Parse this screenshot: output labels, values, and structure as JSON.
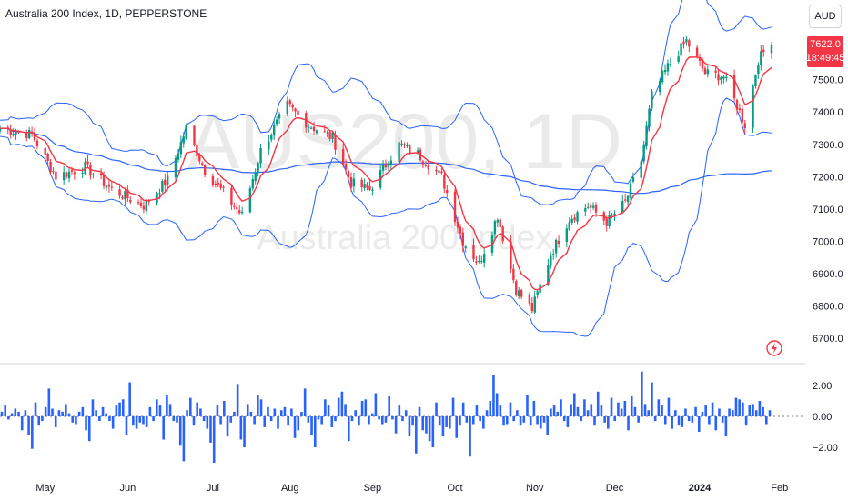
{
  "header": {
    "symbol_title": "Australia 200 Index, 1D, PEPPERSTONE",
    "currency": "AUD",
    "last_price": "7622.0",
    "countdown": "18:49:45"
  },
  "watermark": {
    "ticker": "AUS200, 1D",
    "name": "Australia 200 Index"
  },
  "colors": {
    "up": "#089981",
    "down": "#f23645",
    "band": "#2962ff",
    "ema": "#f23645",
    "histogram": "#2962ff"
  },
  "chart_data": [
    {
      "type": "candlestick",
      "price_axis": {
        "ylim": [
          6650,
          7690
        ],
        "ticks": [
          "7500.0",
          "7400.0",
          "7300.0",
          "7200.0",
          "7100.0",
          "7000.0",
          "6900.0",
          "6800.0",
          "6700.0"
        ]
      },
      "time_axis": {
        "labels": [
          "May",
          "Jun",
          "Jul",
          "Aug",
          "Sep",
          "Oct",
          "Nov",
          "Dec",
          "2024",
          "Feb"
        ]
      },
      "close_series": [
        {
          "date": "2023-04-14",
          "close": 7350
        },
        {
          "date": "2023-04-26",
          "close": 7330
        },
        {
          "date": "2023-05-05",
          "close": 7200
        },
        {
          "date": "2023-05-16",
          "close": 7230
        },
        {
          "date": "2023-05-26",
          "close": 7160
        },
        {
          "date": "2023-06-07",
          "close": 7110
        },
        {
          "date": "2023-06-16",
          "close": 7190
        },
        {
          "date": "2023-06-23",
          "close": 7350
        },
        {
          "date": "2023-06-30",
          "close": 7220
        },
        {
          "date": "2023-07-07",
          "close": 7150
        },
        {
          "date": "2023-07-14",
          "close": 7080
        },
        {
          "date": "2023-07-21",
          "close": 7280
        },
        {
          "date": "2023-07-31",
          "close": 7420
        },
        {
          "date": "2023-08-08",
          "close": 7360
        },
        {
          "date": "2023-08-17",
          "close": 7320
        },
        {
          "date": "2023-08-24",
          "close": 7180
        },
        {
          "date": "2023-08-31",
          "close": 7160
        },
        {
          "date": "2023-09-11",
          "close": 7300
        },
        {
          "date": "2023-09-18",
          "close": 7270
        },
        {
          "date": "2023-09-27",
          "close": 7200
        },
        {
          "date": "2023-10-05",
          "close": 7000
        },
        {
          "date": "2023-10-11",
          "close": 6930
        },
        {
          "date": "2023-10-18",
          "close": 7080
        },
        {
          "date": "2023-10-25",
          "close": 6850
        },
        {
          "date": "2023-10-31",
          "close": 6790
        },
        {
          "date": "2023-11-07",
          "close": 6960
        },
        {
          "date": "2023-11-14",
          "close": 7070
        },
        {
          "date": "2023-11-21",
          "close": 7110
        },
        {
          "date": "2023-11-28",
          "close": 7060
        },
        {
          "date": "2023-12-05",
          "close": 7120
        },
        {
          "date": "2023-12-11",
          "close": 7250
        },
        {
          "date": "2023-12-15",
          "close": 7450
        },
        {
          "date": "2023-12-21",
          "close": 7540
        },
        {
          "date": "2023-12-28",
          "close": 7620
        },
        {
          "date": "2024-01-04",
          "close": 7520
        },
        {
          "date": "2024-01-11",
          "close": 7510
        },
        {
          "date": "2024-01-17",
          "close": 7400
        },
        {
          "date": "2024-01-19",
          "close": 7360
        },
        {
          "date": "2024-01-24",
          "close": 7560
        },
        {
          "date": "2024-01-29",
          "close": 7622
        }
      ],
      "indicators": [
        "Bollinger Bands",
        "EMA",
        "Moving Average"
      ]
    },
    {
      "type": "bar",
      "name": "oscillator",
      "ylim": [
        -3,
        3
      ],
      "ticks": [
        "2.00",
        "0.00",
        "−2.00"
      ],
      "values": [
        0.3,
        0.7,
        -0.2,
        0.2,
        0.5,
        0.3,
        -0.9,
        0.4,
        -1.2,
        -2.1,
        0.9,
        -0.6,
        -0.3,
        0.6,
        1.8,
        0.5,
        -0.7,
        0.4,
        0.3,
        0.8,
        0.2,
        -0.4,
        -0.5,
        0.3,
        0.6,
        -0.9,
        -1.6,
        1.1,
        0.4,
        -0.3,
        0.6,
        0.2,
        -0.3,
        -0.8,
        0.7,
        0.9,
        1.1,
        -1.2,
        2.2,
        -0.6,
        -0.8,
        -0.4,
        -0.5,
        -0.7,
        0.6,
        -0.3,
        1.1,
        0.7,
        -1.5,
        1.4,
        0.8,
        -0.3,
        -0.4,
        -1.9,
        -2.9,
        0.4,
        1.2,
        -0.6,
        0.9,
        0.5,
        -0.3,
        -0.8,
        -1.7,
        -3.0,
        0.7,
        -0.5,
        1.0,
        -1.3,
        -0.4,
        0.3,
        2.1,
        -1.5,
        -2.0,
        0.8,
        0.3,
        -0.5,
        1.4,
        1.1,
        -0.7,
        0.6,
        -0.3,
        0.5,
        -0.8,
        0.4,
        0.6,
        -0.6,
        0.5,
        -1.4,
        -0.9,
        0.3,
        1.8,
        -0.4,
        -1.2,
        -2.0,
        -0.2,
        -0.5,
        1.1,
        0.7,
        -0.7,
        -0.3,
        1.2,
        1.6,
        0.8,
        -1.6,
        -0.3,
        0.4,
        -0.6,
        1.0,
        1.1,
        -0.5,
        0.2,
        1.5,
        -0.2,
        -0.5,
        -0.4,
        1.3,
        -0.2,
        -1.1,
        0.7,
        -0.3,
        0.4,
        -1.3,
        -0.6,
        -2.4,
        0.6,
        -0.9,
        -1.1,
        -1.6,
        -2.0,
        0.9,
        -0.6,
        -1.3,
        -0.7,
        -0.8,
        1.2,
        -1.4,
        -0.6,
        0.9,
        -0.4,
        -2.6,
        -0.5,
        0.7,
        -0.3,
        -0.8,
        0.4,
        1.0,
        2.7,
        1.5,
        0.7,
        -0.6,
        -0.5,
        0.9,
        -0.3,
        0.4,
        -0.6,
        -0.4,
        1.4,
        -0.6,
        1.0,
        -0.5,
        -0.8,
        -0.4,
        -1.2,
        0.5,
        0.7,
        0.3,
        1.1,
        -0.3,
        -0.7,
        0.8,
        1.5,
        0.6,
        -0.3,
        1.1,
        0.4,
        0.8,
        -0.6,
        1.6,
        0.7,
        -0.4,
        -0.8,
        1.2,
        -0.3,
        0.9,
        0.5,
        1.0,
        -0.9,
        1.3,
        0.6,
        -0.4,
        2.9,
        0.8,
        0.4,
        2.2,
        -0.3,
        1.1,
        0.7,
        -0.5,
        1.2,
        -0.8,
        0.4,
        -0.6,
        -0.7,
        0.5,
        -0.3,
        -0.4,
        0.6,
        -1.0,
        0.3,
        0.7,
        -0.5,
        0.9,
        -0.9,
        0.5,
        -0.4,
        -1.3,
        0.5,
        0.4,
        1.2,
        1.1,
        0.9,
        -0.6,
        0.7,
        0.8,
        0.4,
        1.0,
        0.6,
        -0.5,
        0.4
      ]
    }
  ]
}
